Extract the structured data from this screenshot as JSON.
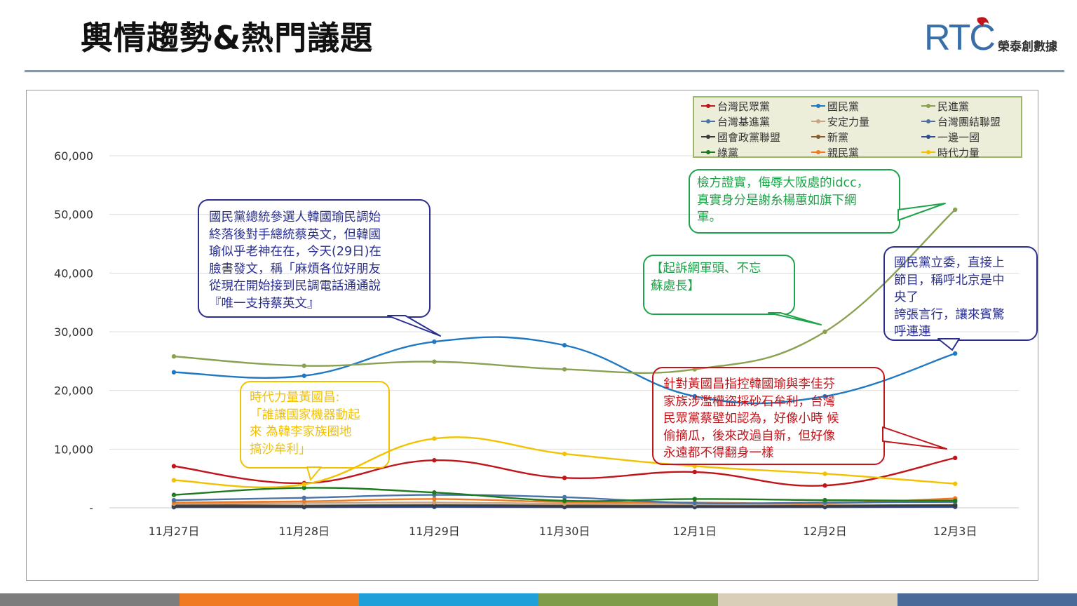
{
  "header": {
    "title": "輿情趨勢&熱門議題",
    "logo_letters": "RTC",
    "logo_name": "榮泰創數據"
  },
  "legend": [
    {
      "name": "台灣民眾黨",
      "color": "#c0151b"
    },
    {
      "name": "國民黨",
      "color": "#1f78c1"
    },
    {
      "name": "民進黨",
      "color": "#8aa152"
    },
    {
      "name": "台灣基進黨",
      "color": "#4a73a8"
    },
    {
      "name": "安定力量",
      "color": "#c9a483"
    },
    {
      "name": "台灣團結聯盟",
      "color": "#4f6fa0"
    },
    {
      "name": "國會政黨聯盟",
      "color": "#3b3b3b"
    },
    {
      "name": "新黨",
      "color": "#8b5a2b"
    },
    {
      "name": "一邊一國",
      "color": "#2a4d8f"
    },
    {
      "name": "綠黨",
      "color": "#1e7a1e"
    },
    {
      "name": "親民黨",
      "color": "#f07a22"
    },
    {
      "name": "時代力量",
      "color": "#f2c200"
    }
  ],
  "chart_data": {
    "type": "line",
    "smooth": true,
    "categories": [
      "11月27日",
      "11月28日",
      "11月29日",
      "11月30日",
      "12月1日",
      "12月2日",
      "12月3日"
    ],
    "y_ticks": [
      "-",
      "10,000",
      "20,000",
      "30,000",
      "40,000",
      "50,000",
      "60,000"
    ],
    "ylim": [
      0,
      60000
    ],
    "grid": true,
    "legend_position": "top-right",
    "series": [
      {
        "name": "民進黨",
        "color": "#8aa152",
        "values": [
          25800,
          24200,
          24900,
          23600,
          23600,
          30000,
          50800
        ]
      },
      {
        "name": "國民黨",
        "color": "#1f78c1",
        "values": [
          23100,
          22500,
          28300,
          27700,
          19000,
          19000,
          26300
        ]
      },
      {
        "name": "時代力量",
        "color": "#f2c200",
        "values": [
          4700,
          4000,
          11800,
          9200,
          7100,
          5800,
          4100
        ]
      },
      {
        "name": "台灣民眾黨",
        "color": "#c0151b",
        "values": [
          7100,
          4200,
          8100,
          5100,
          6100,
          3800,
          8500
        ]
      },
      {
        "name": "綠黨",
        "color": "#1e7a1e",
        "values": [
          2200,
          3400,
          2600,
          1200,
          1500,
          1300,
          1200
        ]
      },
      {
        "name": "台灣基進黨",
        "color": "#4a73a8",
        "values": [
          1300,
          1700,
          2200,
          1800,
          800,
          900,
          1000
        ]
      },
      {
        "name": "親民黨",
        "color": "#f07a22",
        "values": [
          900,
          1100,
          1500,
          1000,
          900,
          800,
          1600
        ]
      },
      {
        "name": "安定力量",
        "color": "#c9a483",
        "values": [
          700,
          800,
          900,
          700,
          600,
          700,
          1400
        ]
      },
      {
        "name": "國會政黨聯盟",
        "color": "#3b3b3b",
        "values": [
          300,
          300,
          400,
          300,
          300,
          300,
          400
        ]
      },
      {
        "name": "新黨",
        "color": "#8b5a2b",
        "values": [
          500,
          400,
          500,
          400,
          400,
          400,
          500
        ]
      },
      {
        "name": "一邊一國",
        "color": "#2a4d8f",
        "values": [
          150,
          150,
          200,
          150,
          150,
          150,
          200
        ]
      },
      {
        "name": "台灣團結聯盟",
        "color": "#4f6fa0",
        "values": [
          100,
          100,
          150,
          100,
          100,
          100,
          150
        ]
      }
    ]
  },
  "annotations": {
    "kmt_candidate": {
      "text": "國民黨總統參選人韓國瑜民調始\n終落後對手總統蔡英文，但韓國\n瑜似乎老神在在，今天(29日)在\n臉書發文，稱「麻煩各位好朋友\n從現在開始接到民調電話通通說\n『唯一支持蔡英文』",
      "color": "#2a2f8f"
    },
    "npp": {
      "text": "時代力量黃國昌:\n「誰讓國家機器動起\n來 為韓李家族圈地\n搞沙牟利」",
      "color": "#f2c200"
    },
    "indictment": {
      "text": "【起訴網軍頭、不忘\n蘇處長】",
      "color": "#1fa34a"
    },
    "prosecutor": {
      "text": "檢方證實，侮辱大阪處的idcc，\n真實身分是謝糸楊蕙如旗下網\n軍。",
      "color": "#1fa34a"
    },
    "tpp": {
      "text": "針對黃國昌指控韓國瑜與李佳芬\n家族涉濫權盜採砂石牟利，台灣\n民眾黨蔡壁如認為，好像小時 候\n偷摘瓜，後來改過自新，但好像\n永遠都不得翻身一樣",
      "color": "#c0151b"
    },
    "kmt_legislator": {
      "text": "國民黨立委，直接上\n節目，稱呼北京是中\n央了\n誇張言行，讓來賓驚\n呼連連",
      "color": "#2a2f8f"
    }
  },
  "footer_colors": [
    "#7d7d7d",
    "#f07a22",
    "#1fa0d8",
    "#7e9c4a",
    "#d9cfb8",
    "#4a6a9a"
  ]
}
